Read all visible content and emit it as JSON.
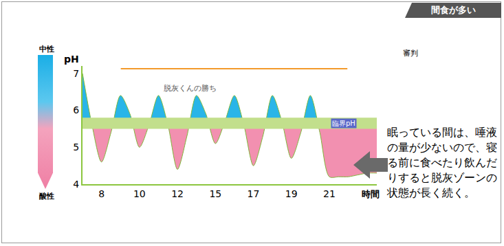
{
  "chart_data": {
    "type": "line",
    "title": "間食が多い",
    "categories": [
      null,
      null,
      "8",
      null,
      null,
      null,
      "10",
      null,
      null,
      null,
      "12",
      null,
      null,
      null,
      "15",
      null,
      null,
      null,
      "17",
      null,
      null,
      null,
      "19",
      null,
      null,
      null,
      "21",
      null,
      null,
      null,
      null,
      null
    ],
    "values": [
      7.0,
      5.6,
      4.6,
      5.4,
      6.4,
      5.9,
      5.0,
      5.6,
      6.4,
      5.6,
      4.4,
      5.3,
      6.4,
      5.9,
      5.1,
      5.7,
      6.4,
      5.6,
      4.5,
      5.3,
      6.4,
      5.7,
      4.7,
      5.4,
      6.4,
      5.4,
      4.2,
      4.2,
      4.2,
      4.25,
      4.3,
      4.3
    ],
    "x_label": "時間",
    "y_label": "pH",
    "ylim": [
      4,
      7.2
    ],
    "yticks": [
      4,
      5,
      6,
      7
    ],
    "grid": false,
    "critical_ph": {
      "low": 5.5,
      "high": 5.8,
      "label": "臨界pH"
    },
    "scale_labels": {
      "top": "中性",
      "bottom": "酸性"
    },
    "annotations": {
      "winner": "脱灰くんの勝ち",
      "referee": "審判",
      "note": "眠っている間は、唾液の量が少ないので、寝る前に食べたり飲んだりすると脱灰ゾーンの状態が長く続く。"
    }
  }
}
